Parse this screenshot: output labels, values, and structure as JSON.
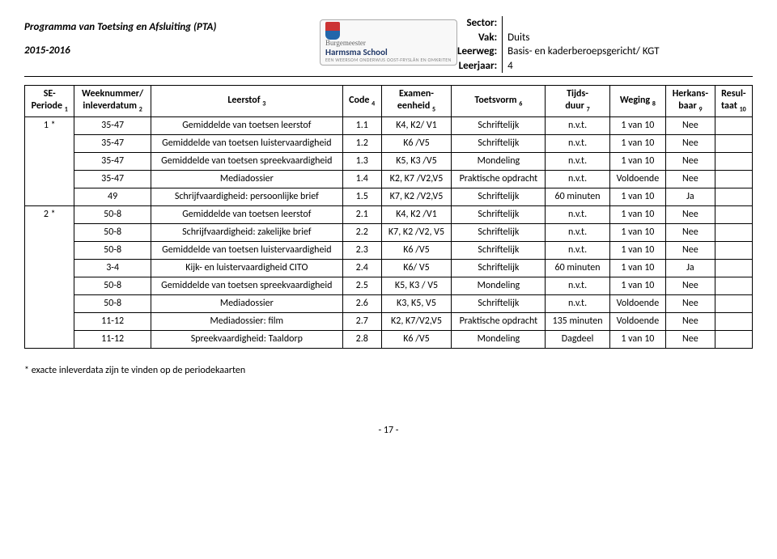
{
  "header": {
    "title": "Programma van Toetsing en Afsluiting (PTA)",
    "year": "2015-2016",
    "logo_top": "Burgemeester",
    "logo_main": "Harmsma School",
    "logo_sub": "EEN WEERSOM ONDERWIJS OOST-FRYSLÂN EN OMKRITEN",
    "labels": {
      "sector": "Sector:",
      "vak": "Vak:",
      "leerweg": "Leerweg:",
      "leerjaar": "Leerjaar:"
    },
    "values": {
      "sector": "",
      "vak": "Duits",
      "leerweg": "Basis- en kaderberoepsgericht/ KGT",
      "leerjaar": "4"
    }
  },
  "columns": [
    {
      "line1": "SE-",
      "line2": "Periode",
      "sub": "1"
    },
    {
      "line1": "Weeknummer/",
      "line2": "inleverdatum",
      "sub": "2"
    },
    {
      "line1": "Leerstof",
      "line2": "",
      "sub": "3"
    },
    {
      "line1": "Code",
      "line2": "",
      "sub": "4"
    },
    {
      "line1": "Examen-",
      "line2": "eenheid",
      "sub": "5"
    },
    {
      "line1": "Toetsvorm",
      "line2": "",
      "sub": "6"
    },
    {
      "line1": "Tijds-",
      "line2": "duur",
      "sub": "7"
    },
    {
      "line1": "Weging",
      "line2": "",
      "sub": "8"
    },
    {
      "line1": "Herkans-",
      "line2": "baar",
      "sub": "9"
    },
    {
      "line1": "Resul-",
      "line2": "taat",
      "sub": "10"
    }
  ],
  "groups": [
    {
      "periode": "1 *",
      "rows": [
        {
          "week": "35-47",
          "leerstof": "Gemiddelde van toetsen leerstof",
          "code": "1.1",
          "exameneenheid": "K4, K2/ V1",
          "toetsvorm": "Schriftelijk",
          "tijdsduur": "n.v.t.",
          "weging": "1 van 10",
          "herkansbaar": "Nee",
          "resultaat": ""
        },
        {
          "week": "35-47",
          "leerstof": "Gemiddelde van toetsen luistervaardigheid",
          "code": "1.2",
          "exameneenheid": "K6 /V5",
          "toetsvorm": "Schriftelijk",
          "tijdsduur": "n.v.t.",
          "weging": "1 van 10",
          "herkansbaar": "Nee",
          "resultaat": ""
        },
        {
          "week": "35-47",
          "leerstof": "Gemiddelde van toetsen spreekvaardigheid",
          "code": "1.3",
          "exameneenheid": "K5, K3 /V5",
          "toetsvorm": "Mondeling",
          "tijdsduur": "n.v.t.",
          "weging": "1 van 10",
          "herkansbaar": "Nee",
          "resultaat": ""
        },
        {
          "week": "35-47",
          "leerstof": "Mediadossier",
          "code": "1.4",
          "exameneenheid": "K2, K7 /V2,V5",
          "toetsvorm": "Praktische opdracht",
          "tijdsduur": "n.v.t.",
          "weging": "Voldoende",
          "herkansbaar": "Nee",
          "resultaat": ""
        },
        {
          "week": "49",
          "leerstof": "Schrijfvaardigheid: persoonlijke brief",
          "code": "1.5",
          "exameneenheid": "K7, K2 /V2,V5",
          "toetsvorm": "Schriftelijk",
          "tijdsduur": "60 minuten",
          "weging": "1 van 10",
          "herkansbaar": "Ja",
          "resultaat": ""
        }
      ]
    },
    {
      "periode": "2 *",
      "rows": [
        {
          "week": "50-8",
          "leerstof": "Gemiddelde van toetsen leerstof",
          "code": "2.1",
          "exameneenheid": "K4, K2 /V1",
          "toetsvorm": "Schriftelijk",
          "tijdsduur": "n.v.t.",
          "weging": "1 van 10",
          "herkansbaar": "Nee",
          "resultaat": ""
        },
        {
          "week": "50-8",
          "leerstof": "Schrijfvaardigheid: zakelijke brief",
          "code": "2.2",
          "exameneenheid": "K7, K2 /V2, V5",
          "toetsvorm": "Schriftelijk",
          "tijdsduur": "n.v.t.",
          "weging": "1 van 10",
          "herkansbaar": "Nee",
          "resultaat": ""
        },
        {
          "week": "50-8",
          "leerstof": "Gemiddelde van toetsen luistervaardigheid",
          "code": "2.3",
          "exameneenheid": "K6 /V5",
          "toetsvorm": "Schriftelijk",
          "tijdsduur": "n.v.t.",
          "weging": "1 van 10",
          "herkansbaar": "Nee",
          "resultaat": ""
        },
        {
          "week": "3-4",
          "leerstof": "Kijk- en luistervaardigheid CITO",
          "code": "2.4",
          "exameneenheid": "K6/ V5",
          "toetsvorm": "Schriftelijk",
          "tijdsduur": "60 minuten",
          "weging": "1 van 10",
          "herkansbaar": "Ja",
          "resultaat": ""
        },
        {
          "week": "50-8",
          "leerstof": "Gemiddelde van toetsen spreekvaardigheid",
          "code": "2.5",
          "exameneenheid": "K5, K3 / V5",
          "toetsvorm": "Mondeling",
          "tijdsduur": "n.v.t.",
          "weging": "1 van 10",
          "herkansbaar": "Nee",
          "resultaat": ""
        },
        {
          "week": "50-8",
          "leerstof": "Mediadossier",
          "code": "2.6",
          "exameneenheid": "K3, K5, V5",
          "toetsvorm": "Schriftelijk",
          "tijdsduur": "n.v.t.",
          "weging": "Voldoende",
          "herkansbaar": "Nee",
          "resultaat": ""
        },
        {
          "week": "11-12",
          "leerstof": "Mediadossier: film",
          "code": "2.7",
          "exameneenheid": "K2, K7/V2,V5",
          "toetsvorm": "Praktische opdracht",
          "tijdsduur": "135 minuten",
          "weging": "Voldoende",
          "herkansbaar": "Nee",
          "resultaat": ""
        },
        {
          "week": "11-12",
          "leerstof": "Spreekvaardigheid: Taaldorp",
          "code": "2.8",
          "exameneenheid": "K6 /V5",
          "toetsvorm": "Mondeling",
          "tijdsduur": "Dagdeel",
          "weging": "1 van 10",
          "herkansbaar": "Nee",
          "resultaat": ""
        }
      ]
    }
  ],
  "footnote": "* exacte inleverdata zijn te vinden op de periodekaarten",
  "pagenum": "- 17 -"
}
